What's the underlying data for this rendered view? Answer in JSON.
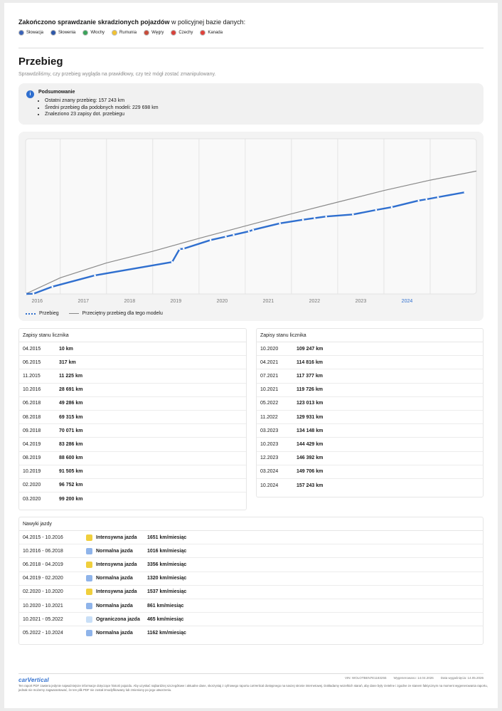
{
  "stolen_check": {
    "title_bold": "Zakończono sprawdzanie skradzionych pojazdów",
    "title_rest": " w policyjnej bazie danych:",
    "countries": [
      {
        "name": "Słowacja",
        "color": "#3a63b8"
      },
      {
        "name": "Słowenia",
        "color": "#2d57a8"
      },
      {
        "name": "Włochy",
        "color": "#3aa35a"
      },
      {
        "name": "Rumunia",
        "color": "#f2c230"
      },
      {
        "name": "Węgry",
        "color": "#c94b3a"
      },
      {
        "name": "Czechy",
        "color": "#d8413a"
      },
      {
        "name": "Kanada",
        "color": "#e0413a"
      }
    ]
  },
  "mileage": {
    "heading": "Przebieg",
    "subtitle": "Sprawdziliśmy, czy przebieg wygląda na prawidłowy, czy też mógł zostać zmanipulowany.",
    "summary": {
      "title": "Podsumowanie",
      "items": [
        "Ostatni znany przebieg: 157 243 km",
        "Średni przebieg dla podobnych modeli: 229 698 km",
        "Znaleziono 23 zapisy dot. przebiegu"
      ]
    }
  },
  "chart_data": {
    "type": "line",
    "x_tick_labels": [
      "2016",
      "2017",
      "2018",
      "2019",
      "2020",
      "2021",
      "2022",
      "2023",
      "2024"
    ],
    "highlighted_tick": "2024",
    "grid": true,
    "legend_position": "bottom-left",
    "ylim": [
      0,
      240000
    ],
    "xlim": [
      2015.25,
      2025.0
    ],
    "series": [
      {
        "name": "Przebieg",
        "color": "#2f6fcf",
        "style": "dotted-markers",
        "points": [
          [
            2015.25,
            10
          ],
          [
            2015.42,
            317
          ],
          [
            2015.83,
            11225
          ],
          [
            2016.75,
            28691
          ],
          [
            2018.42,
            49286
          ],
          [
            2018.58,
            69315
          ],
          [
            2018.67,
            70071
          ],
          [
            2019.25,
            83286
          ],
          [
            2019.58,
            88600
          ],
          [
            2019.75,
            91505
          ],
          [
            2020.08,
            96752
          ],
          [
            2020.17,
            99200
          ],
          [
            2020.75,
            109247
          ],
          [
            2021.25,
            114816
          ],
          [
            2021.5,
            117377
          ],
          [
            2021.75,
            119726
          ],
          [
            2022.33,
            123013
          ],
          [
            2022.83,
            129931
          ],
          [
            2023.17,
            134148
          ],
          [
            2023.75,
            144429
          ],
          [
            2023.92,
            146392
          ],
          [
            2024.17,
            149706
          ],
          [
            2024.75,
            157243
          ]
        ]
      },
      {
        "name": "Przeciętny przebieg dla tego modelu",
        "color": "#8a8a8a",
        "style": "line",
        "points": [
          [
            2015.25,
            0
          ],
          [
            2016.0,
            25000
          ],
          [
            2017.0,
            48000
          ],
          [
            2018.0,
            66000
          ],
          [
            2019.0,
            86000
          ],
          [
            2020.0,
            105000
          ],
          [
            2021.0,
            124000
          ],
          [
            2022.0,
            142000
          ],
          [
            2023.0,
            160000
          ],
          [
            2024.0,
            176000
          ],
          [
            2025.0,
            190000
          ]
        ]
      }
    ]
  },
  "odometer_left": {
    "header": "Zapisy stanu licznika",
    "rows": [
      {
        "date": "04.2015",
        "value": "10 km"
      },
      {
        "date": "06.2015",
        "value": "317 km"
      },
      {
        "date": "11.2015",
        "value": "11 225 km"
      },
      {
        "date": "10.2016",
        "value": "28 691 km"
      },
      {
        "date": "06.2018",
        "value": "49 286 km"
      },
      {
        "date": "08.2018",
        "value": "69 315 km"
      },
      {
        "date": "09.2018",
        "value": "70 071 km"
      },
      {
        "date": "04.2019",
        "value": "83 286 km"
      },
      {
        "date": "08.2019",
        "value": "88 600 km"
      },
      {
        "date": "10.2019",
        "value": "91 505 km"
      },
      {
        "date": "02.2020",
        "value": "96 752 km"
      },
      {
        "date": "03.2020",
        "value": "99 200 km"
      }
    ]
  },
  "odometer_right": {
    "header": "Zapisy stanu licznika",
    "rows": [
      {
        "date": "10.2020",
        "value": "109 247 km"
      },
      {
        "date": "04.2021",
        "value": "114 816 km"
      },
      {
        "date": "07.2021",
        "value": "117 377 km"
      },
      {
        "date": "10.2021",
        "value": "119 726 km"
      },
      {
        "date": "05.2022",
        "value": "123 013 km"
      },
      {
        "date": "11.2022",
        "value": "129 931 km"
      },
      {
        "date": "03.2023",
        "value": "134 148 km"
      },
      {
        "date": "10.2023",
        "value": "144 429 km"
      },
      {
        "date": "12.2023",
        "value": "146 392 km"
      },
      {
        "date": "03.2024",
        "value": "149 706 km"
      },
      {
        "date": "10.2024",
        "value": "157 243 km"
      }
    ]
  },
  "driving": {
    "header": "Nawyki jazdy",
    "rows": [
      {
        "period": "04.2015 - 10.2016",
        "type": "Intensywna jazda",
        "rate": "1651 km/miesiąc",
        "color": "#f0cf3c"
      },
      {
        "period": "10.2016 - 06.2018",
        "type": "Normalna jazda",
        "rate": "1016 km/miesiąc",
        "color": "#8fb4ea"
      },
      {
        "period": "06.2018 - 04.2019",
        "type": "Intensywna jazda",
        "rate": "3356 km/miesiąc",
        "color": "#f0cf3c"
      },
      {
        "period": "04.2019 - 02.2020",
        "type": "Normalna jazda",
        "rate": "1320 km/miesiąc",
        "color": "#8fb4ea"
      },
      {
        "period": "02.2020 - 10.2020",
        "type": "Intensywna jazda",
        "rate": "1537 km/miesiąc",
        "color": "#f0cf3c"
      },
      {
        "period": "10.2020 - 10.2021",
        "type": "Normalna jazda",
        "rate": "861 km/miesiąc",
        "color": "#8fb4ea"
      },
      {
        "period": "10.2021 - 05.2022",
        "type": "Ograniczona jazda",
        "rate": "465 km/miesiąc",
        "color": "#c9dff7"
      },
      {
        "period": "05.2022 - 10.2024",
        "type": "Normalna jazda",
        "rate": "1162 km/miesiąc",
        "color": "#8fb4ea"
      }
    ]
  },
  "footer": {
    "logo": "carVertical",
    "vin": "VIN: WOLOTBEN7E1183255",
    "generated": "Wygenerowano: 14.04.2026",
    "expires": "Data wygaśnięcia: 14.05.2026",
    "disclaimer": "Ten raport PDF zawiera jedynie najważniejsze informacje dotyczące historii pojazdu. Aby uzyskać najbardziej szczegółowe i aktualne dane, skorzystaj z cyfrowego raportu carVertical dostępnego na naszej stronie internetowej. Dokładamy wszelkich starań, aby dane były rzetelne i zgodne ze stanem faktycznym na moment wygenerowania raportu, jednak nie możemy zagwarantować, że ten plik PDF nie został zmodyfikowany lub zmieniony po jego utworzeniu."
  }
}
